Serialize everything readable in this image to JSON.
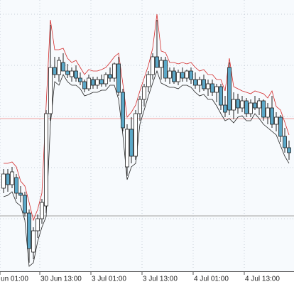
{
  "chart_data": {
    "type": "candlestick",
    "categories": [
      null,
      null,
      null,
      null,
      null,
      null,
      null,
      null,
      null,
      null,
      null,
      null,
      null,
      null,
      null,
      null,
      null,
      null,
      null,
      null,
      null,
      null,
      null,
      null,
      null,
      null,
      null,
      null,
      null,
      null,
      null,
      null,
      null,
      null,
      null,
      null,
      null,
      null,
      null,
      null,
      null,
      null,
      null,
      null,
      null,
      null,
      null,
      null,
      null,
      null,
      null,
      null,
      null,
      null,
      null,
      null,
      null,
      null,
      null,
      null,
      null,
      null,
      null,
      null,
      null,
      null,
      null,
      null
    ],
    "open": [
      115,
      135,
      120,
      130,
      108,
      105,
      80,
      25,
      55,
      72,
      90,
      220,
      285,
      275,
      292,
      280,
      272,
      280,
      270,
      265,
      255,
      268,
      260,
      268,
      262,
      275,
      270,
      290,
      250,
      145,
      198,
      160,
      220,
      240,
      258,
      275,
      300,
      285,
      295,
      270,
      280,
      265,
      278,
      270,
      280,
      268,
      260,
      268,
      255,
      262,
      250,
      258,
      232,
      285,
      225,
      240,
      228,
      238,
      220,
      235,
      228,
      238,
      215,
      228,
      205,
      215,
      188,
      172
    ],
    "high": [
      142,
      142,
      145,
      135,
      118,
      110,
      85,
      60,
      78,
      100,
      225,
      345,
      300,
      300,
      305,
      290,
      285,
      288,
      278,
      268,
      275,
      272,
      272,
      275,
      278,
      285,
      292,
      300,
      255,
      205,
      215,
      225,
      245,
      262,
      280,
      305,
      352,
      300,
      300,
      285,
      285,
      282,
      285,
      282,
      285,
      278,
      272,
      275,
      268,
      268,
      262,
      262,
      245,
      292,
      250,
      248,
      245,
      242,
      240,
      245,
      242,
      240,
      235,
      245,
      222,
      218,
      200,
      182
    ],
    "low": [
      108,
      110,
      115,
      100,
      95,
      75,
      10,
      15,
      45,
      65,
      80,
      210,
      270,
      265,
      280,
      270,
      265,
      265,
      260,
      250,
      252,
      255,
      255,
      258,
      258,
      265,
      265,
      245,
      195,
      132,
      150,
      155,
      210,
      230,
      250,
      268,
      285,
      268,
      265,
      262,
      262,
      260,
      265,
      265,
      262,
      255,
      250,
      252,
      245,
      245,
      236,
      225,
      215,
      218,
      212,
      220,
      222,
      215,
      215,
      225,
      218,
      210,
      205,
      200,
      195,
      180,
      165,
      155
    ],
    "close": [
      135,
      120,
      138,
      108,
      105,
      80,
      30,
      55,
      72,
      95,
      220,
      285,
      275,
      295,
      280,
      275,
      280,
      270,
      265,
      255,
      270,
      260,
      268,
      262,
      275,
      270,
      290,
      250,
      200,
      198,
      160,
      220,
      240,
      258,
      275,
      300,
      285,
      295,
      270,
      280,
      265,
      278,
      270,
      280,
      268,
      260,
      268,
      255,
      262,
      250,
      258,
      232,
      222,
      225,
      240,
      228,
      238,
      220,
      235,
      228,
      238,
      215,
      228,
      205,
      215,
      188,
      172,
      165
    ],
    "bull_color": "#ffffff",
    "bear_color": "#5ba8c8",
    "overlays": [
      {
        "color": "#d42a2a",
        "values": [
          150,
          150,
          152,
          145,
          125,
          118,
          95,
          70,
          85,
          108,
          232,
          352,
          310,
          310,
          312,
          298,
          292,
          295,
          285,
          275,
          282,
          280,
          280,
          282,
          285,
          292,
          300,
          305,
          262,
          215,
          222,
          232,
          252,
          270,
          288,
          312,
          360,
          308,
          306,
          292,
          292,
          290,
          292,
          290,
          292,
          285,
          280,
          282,
          275,
          275,
          268,
          268,
          252,
          298,
          258,
          255,
          252,
          250,
          248,
          252,
          250,
          248,
          242,
          252,
          230,
          225,
          208,
          190
        ]
      },
      {
        "color": "#222222",
        "values": [
          103,
          105,
          110,
          95,
          90,
          70,
          5,
          10,
          40,
          60,
          75,
          205,
          265,
          260,
          275,
          265,
          260,
          260,
          255,
          245,
          247,
          250,
          250,
          253,
          253,
          260,
          260,
          240,
          190,
          127,
          145,
          150,
          205,
          225,
          245,
          263,
          280,
          263,
          260,
          257,
          257,
          255,
          260,
          260,
          257,
          250,
          245,
          247,
          240,
          240,
          231,
          220,
          210,
          213,
          207,
          215,
          217,
          210,
          210,
          220,
          213,
          205,
          200,
          195,
          190,
          175,
          160,
          150
        ]
      }
    ],
    "hlines": [
      {
        "value": 213,
        "color": "#f2a0a0"
      },
      {
        "value": 76,
        "color": "#a0a0a0"
      }
    ],
    "ylim": [
      0,
      380
    ],
    "ygrid": [
      72,
      144,
      216,
      288,
      360
    ],
    "xticks": [
      {
        "value": -0.83,
        "label": "un 01:00"
      },
      {
        "value": 8.5,
        "label": "30 Jun 13:00"
      },
      {
        "value": 20.5,
        "label": "3 Jul 01:00"
      },
      {
        "value": 32.5,
        "label": "3 Jul 13:00"
      },
      {
        "value": 44.5,
        "label": "4 Jul 01:00"
      },
      {
        "value": 56.5,
        "label": "4 Jul 13:00"
      }
    ],
    "grid": true
  }
}
